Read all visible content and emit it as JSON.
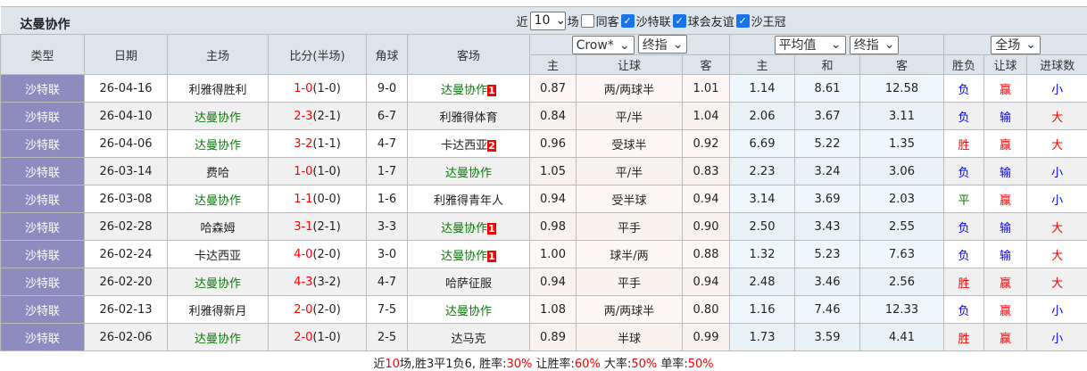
{
  "header": {
    "team": "达曼协作",
    "recent_prefix": "近",
    "recent_count": "10",
    "recent_suffix": "场",
    "same_home": "同客",
    "filters": [
      {
        "label": "沙特联",
        "checked": true
      },
      {
        "label": "球会友谊",
        "checked": true
      },
      {
        "label": "沙王冠",
        "checked": true
      }
    ]
  },
  "columns": {
    "type": "类型",
    "date": "日期",
    "home": "主场",
    "score": "比分(半场)",
    "corner": "角球",
    "away": "客场",
    "asian_company": "Crow*",
    "asian_mode": "终指",
    "euro_company": "平均值",
    "euro_mode": "终指",
    "result_scope": "全场",
    "asian_home": "主",
    "asian_line": "让球",
    "asian_away": "客",
    "euro_home": "主",
    "euro_draw": "和",
    "euro_away": "客",
    "res_wl": "胜负",
    "res_hcp": "让球",
    "res_goals": "进球数"
  },
  "colors": {
    "type_bg": "#8e8bbf",
    "team_highlight": "#0a7a0a",
    "red": "#ff0000",
    "blue": "#0000ff"
  },
  "rows": [
    {
      "type": "沙特联",
      "date": "26-04-16",
      "home": "利雅得胜利",
      "home_hl": false,
      "home_card": "",
      "ft": "1-0",
      "ht": "(1-0)",
      "corner": "9-0",
      "away": "达曼协作",
      "away_hl": true,
      "away_card": "1",
      "ah": "0.87",
      "line": "两/两球半",
      "aa": "1.01",
      "eh": "1.14",
      "ed": "8.61",
      "ea": "12.58",
      "wl": "负",
      "hcp": "赢",
      "goals": "小"
    },
    {
      "type": "沙特联",
      "date": "26-04-10",
      "home": "达曼协作",
      "home_hl": true,
      "home_card": "",
      "ft": "2-3",
      "ht": "(2-1)",
      "corner": "6-7",
      "away": "利雅得体育",
      "away_hl": false,
      "away_card": "",
      "ah": "0.84",
      "line": "平/半",
      "aa": "1.04",
      "eh": "2.06",
      "ed": "3.67",
      "ea": "3.11",
      "wl": "负",
      "hcp": "输",
      "goals": "大"
    },
    {
      "type": "沙特联",
      "date": "26-04-06",
      "home": "达曼协作",
      "home_hl": true,
      "home_card": "",
      "ft": "3-2",
      "ht": "(1-1)",
      "corner": "4-7",
      "away": "卡达西亚",
      "away_hl": false,
      "away_card": "2",
      "ah": "0.96",
      "line": "受球半",
      "aa": "0.92",
      "eh": "6.69",
      "ed": "5.22",
      "ea": "1.35",
      "wl": "胜",
      "hcp": "赢",
      "goals": "大"
    },
    {
      "type": "沙特联",
      "date": "26-03-14",
      "home": "费哈",
      "home_hl": false,
      "home_card": "",
      "ft": "1-0",
      "ht": "(1-0)",
      "corner": "1-7",
      "away": "达曼协作",
      "away_hl": true,
      "away_card": "",
      "ah": "1.05",
      "line": "平/半",
      "aa": "0.83",
      "eh": "2.23",
      "ed": "3.24",
      "ea": "3.06",
      "wl": "负",
      "hcp": "输",
      "goals": "小"
    },
    {
      "type": "沙特联",
      "date": "26-03-08",
      "home": "达曼协作",
      "home_hl": true,
      "home_card": "",
      "ft": "1-1",
      "ht": "(0-0)",
      "corner": "1-6",
      "away": "利雅得青年人",
      "away_hl": false,
      "away_card": "",
      "ah": "0.94",
      "line": "受半球",
      "aa": "0.94",
      "eh": "3.14",
      "ed": "3.69",
      "ea": "2.03",
      "wl": "平",
      "hcp": "赢",
      "goals": "小"
    },
    {
      "type": "沙特联",
      "date": "26-02-28",
      "home": "哈森姆",
      "home_hl": false,
      "home_card": "",
      "ft": "3-1",
      "ht": "(2-1)",
      "corner": "3-3",
      "away": "达曼协作",
      "away_hl": true,
      "away_card": "1",
      "ah": "0.98",
      "line": "平手",
      "aa": "0.90",
      "eh": "2.50",
      "ed": "3.43",
      "ea": "2.55",
      "wl": "负",
      "hcp": "输",
      "goals": "大"
    },
    {
      "type": "沙特联",
      "date": "26-02-24",
      "home": "卡达西亚",
      "home_hl": false,
      "home_card": "",
      "ft": "4-0",
      "ht": "(2-0)",
      "corner": "3-0",
      "away": "达曼协作",
      "away_hl": true,
      "away_card": "1",
      "ah": "1.00",
      "line": "球半/两",
      "aa": "0.88",
      "eh": "1.32",
      "ed": "5.23",
      "ea": "7.63",
      "wl": "负",
      "hcp": "输",
      "goals": "大"
    },
    {
      "type": "沙特联",
      "date": "26-02-20",
      "home": "达曼协作",
      "home_hl": true,
      "home_card": "",
      "ft": "4-3",
      "ht": "(3-2)",
      "corner": "4-7",
      "away": "哈萨征服",
      "away_hl": false,
      "away_card": "",
      "ah": "0.94",
      "line": "平手",
      "aa": "0.94",
      "eh": "2.48",
      "ed": "3.46",
      "ea": "2.56",
      "wl": "胜",
      "hcp": "赢",
      "goals": "大"
    },
    {
      "type": "沙特联",
      "date": "26-02-13",
      "home": "利雅得新月",
      "home_hl": false,
      "home_card": "",
      "ft": "2-0",
      "ht": "(2-0)",
      "corner": "7-5",
      "away": "达曼协作",
      "away_hl": true,
      "away_card": "",
      "ah": "1.08",
      "line": "两/两球半",
      "aa": "0.80",
      "eh": "1.16",
      "ed": "7.46",
      "ea": "12.33",
      "wl": "负",
      "hcp": "赢",
      "goals": "小"
    },
    {
      "type": "沙特联",
      "date": "26-02-06",
      "home": "达曼协作",
      "home_hl": true,
      "home_card": "",
      "ft": "2-0",
      "ht": "(1-0)",
      "corner": "2-5",
      "away": "达马克",
      "away_hl": false,
      "away_card": "",
      "ah": "0.89",
      "line": "半球",
      "aa": "0.99",
      "eh": "1.73",
      "ed": "3.59",
      "ea": "4.41",
      "wl": "胜",
      "hcp": "赢",
      "goals": "小"
    }
  ],
  "footer": {
    "p1": "近",
    "count": "10",
    "p2": "场,胜3平1负6, 胜率:",
    "win_rate": "30%",
    "p3": " 让胜率:",
    "hcp_rate": "60%",
    "p4": " 大率:",
    "big_rate": "50%",
    "p5": " 单率:",
    "odd_rate": "50%"
  }
}
